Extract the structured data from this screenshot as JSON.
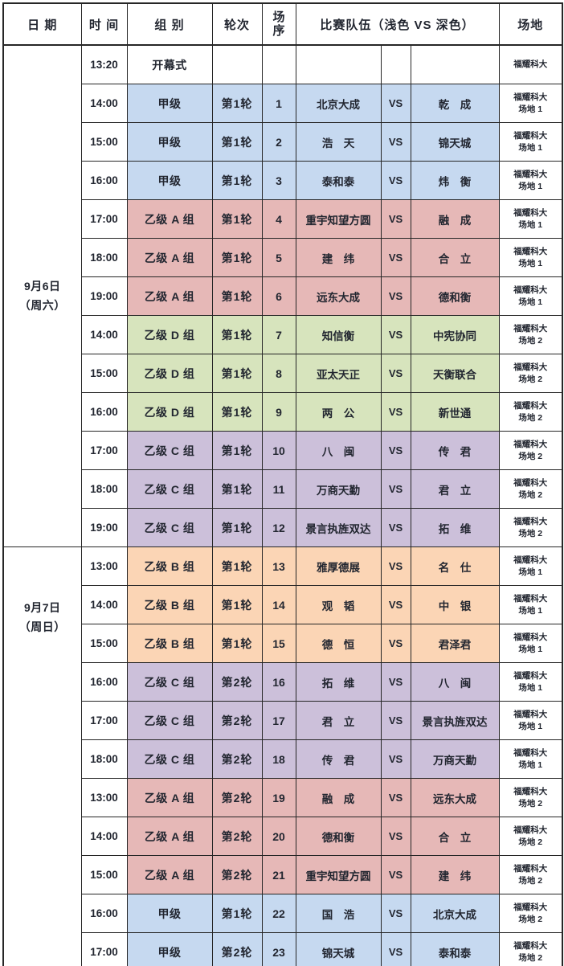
{
  "header": {
    "date": "日 期",
    "time": "时 间",
    "group": "组 别",
    "round": "轮次",
    "seq": "场\n序",
    "teams": "比赛队伍（浅色 VS 深色）",
    "venue": "场地"
  },
  "colors": {
    "jia": "#c6d9f0",
    "yi_a": "#e6b8b7",
    "yi_b": "#fbd5b5",
    "yi_c": "#ccc0da",
    "yi_d": "#d7e4bd",
    "border": "#262626"
  },
  "dates": [
    {
      "label": "9月6日\n（周六）",
      "rowspan": 13
    },
    {
      "label": "9月7日\n（周日）",
      "rowspan": 11
    }
  ],
  "rows": [
    {
      "time": "13:20",
      "group": "开幕式",
      "round": "",
      "seq": "",
      "light": "",
      "vs": "",
      "dark": "",
      "venue": "福耀科大",
      "color": ""
    },
    {
      "time": "14:00",
      "group": "甲级",
      "round": "第1轮",
      "seq": "1",
      "light": "北京大成",
      "vs": "VS",
      "dark": "乾　成",
      "venue": "福耀科大\n场地 1",
      "color": "jia"
    },
    {
      "time": "15:00",
      "group": "甲级",
      "round": "第1轮",
      "seq": "2",
      "light": "浩　天",
      "vs": "VS",
      "dark": "锦天城",
      "venue": "福耀科大\n场地 1",
      "color": "jia"
    },
    {
      "time": "16:00",
      "group": "甲级",
      "round": "第1轮",
      "seq": "3",
      "light": "泰和泰",
      "vs": "VS",
      "dark": "炜　衡",
      "venue": "福耀科大\n场地 1",
      "color": "jia"
    },
    {
      "time": "17:00",
      "group": "乙级 A 组",
      "round": "第1轮",
      "seq": "4",
      "light": "重宇知望方圆",
      "vs": "VS",
      "dark": "融　成",
      "venue": "福耀科大\n场地 1",
      "color": "yi_a"
    },
    {
      "time": "18:00",
      "group": "乙级 A 组",
      "round": "第1轮",
      "seq": "5",
      "light": "建　纬",
      "vs": "VS",
      "dark": "合　立",
      "venue": "福耀科大\n场地 1",
      "color": "yi_a"
    },
    {
      "time": "19:00",
      "group": "乙级 A 组",
      "round": "第1轮",
      "seq": "6",
      "light": "远东大成",
      "vs": "VS",
      "dark": "德和衡",
      "venue": "福耀科大\n场地 1",
      "color": "yi_a"
    },
    {
      "time": "14:00",
      "group": "乙级 D 组",
      "round": "第1轮",
      "seq": "7",
      "light": "知信衡",
      "vs": "VS",
      "dark": "中宪协同",
      "venue": "福耀科大\n场地 2",
      "color": "yi_d"
    },
    {
      "time": "15:00",
      "group": "乙级 D 组",
      "round": "第1轮",
      "seq": "8",
      "light": "亚太天正",
      "vs": "VS",
      "dark": "天衡联合",
      "venue": "福耀科大\n场地 2",
      "color": "yi_d"
    },
    {
      "time": "16:00",
      "group": "乙级 D 组",
      "round": "第1轮",
      "seq": "9",
      "light": "两　公",
      "vs": "VS",
      "dark": "新世通",
      "venue": "福耀科大\n场地 2",
      "color": "yi_d"
    },
    {
      "time": "17:00",
      "group": "乙级 C 组",
      "round": "第1轮",
      "seq": "10",
      "light": "八　闽",
      "vs": "VS",
      "dark": "传　君",
      "venue": "福耀科大\n场地 2",
      "color": "yi_c"
    },
    {
      "time": "18:00",
      "group": "乙级 C 组",
      "round": "第1轮",
      "seq": "11",
      "light": "万商天勤",
      "vs": "VS",
      "dark": "君　立",
      "venue": "福耀科大\n场地 2",
      "color": "yi_c"
    },
    {
      "time": "19:00",
      "group": "乙级 C 组",
      "round": "第1轮",
      "seq": "12",
      "light": "景言执旌双达",
      "vs": "VS",
      "dark": "拓　维",
      "venue": "福耀科大\n场地 2",
      "color": "yi_c"
    },
    {
      "time": "13:00",
      "group": "乙级 B 组",
      "round": "第1轮",
      "seq": "13",
      "light": "雅厚德展",
      "vs": "VS",
      "dark": "名　仕",
      "venue": "福耀科大\n场地 1",
      "color": "yi_b"
    },
    {
      "time": "14:00",
      "group": "乙级 B 组",
      "round": "第1轮",
      "seq": "14",
      "light": "观　韬",
      "vs": "VS",
      "dark": "中　银",
      "venue": "福耀科大\n场地 1",
      "color": "yi_b"
    },
    {
      "time": "15:00",
      "group": "乙级 B 组",
      "round": "第1轮",
      "seq": "15",
      "light": "德　恒",
      "vs": "VS",
      "dark": "君泽君",
      "venue": "福耀科大\n场地 1",
      "color": "yi_b"
    },
    {
      "time": "16:00",
      "group": "乙级 C 组",
      "round": "第2轮",
      "seq": "16",
      "light": "拓　维",
      "vs": "VS",
      "dark": "八　闽",
      "venue": "福耀科大\n场地 1",
      "color": "yi_c"
    },
    {
      "time": "17:00",
      "group": "乙级 C 组",
      "round": "第2轮",
      "seq": "17",
      "light": "君　立",
      "vs": "VS",
      "dark": "景言执旌双达",
      "venue": "福耀科大\n场地 1",
      "color": "yi_c"
    },
    {
      "time": "18:00",
      "group": "乙级 C 组",
      "round": "第2轮",
      "seq": "18",
      "light": "传　君",
      "vs": "VS",
      "dark": "万商天勤",
      "venue": "福耀科大\n场地 1",
      "color": "yi_c"
    },
    {
      "time": "13:00",
      "group": "乙级 A 组",
      "round": "第2轮",
      "seq": "19",
      "light": "融　成",
      "vs": "VS",
      "dark": "远东大成",
      "venue": "福耀科大\n场地 2",
      "color": "yi_a"
    },
    {
      "time": "14:00",
      "group": "乙级 A 组",
      "round": "第2轮",
      "seq": "20",
      "light": "德和衡",
      "vs": "VS",
      "dark": "合　立",
      "venue": "福耀科大\n场地 2",
      "color": "yi_a"
    },
    {
      "time": "15:00",
      "group": "乙级 A 组",
      "round": "第2轮",
      "seq": "21",
      "light": "重宇知望方圆",
      "vs": "VS",
      "dark": "建　纬",
      "venue": "福耀科大\n场地 2",
      "color": "yi_a"
    },
    {
      "time": "16:00",
      "group": "甲级",
      "round": "第1轮",
      "seq": "22",
      "light": "国　浩",
      "vs": "VS",
      "dark": "北京大成",
      "venue": "福耀科大\n场地 2",
      "color": "jia"
    },
    {
      "time": "17:00",
      "group": "甲级",
      "round": "第2轮",
      "seq": "23",
      "light": "锦天城",
      "vs": "VS",
      "dark": "泰和泰",
      "venue": "福耀科大\n场地 2",
      "color": "jia"
    }
  ]
}
